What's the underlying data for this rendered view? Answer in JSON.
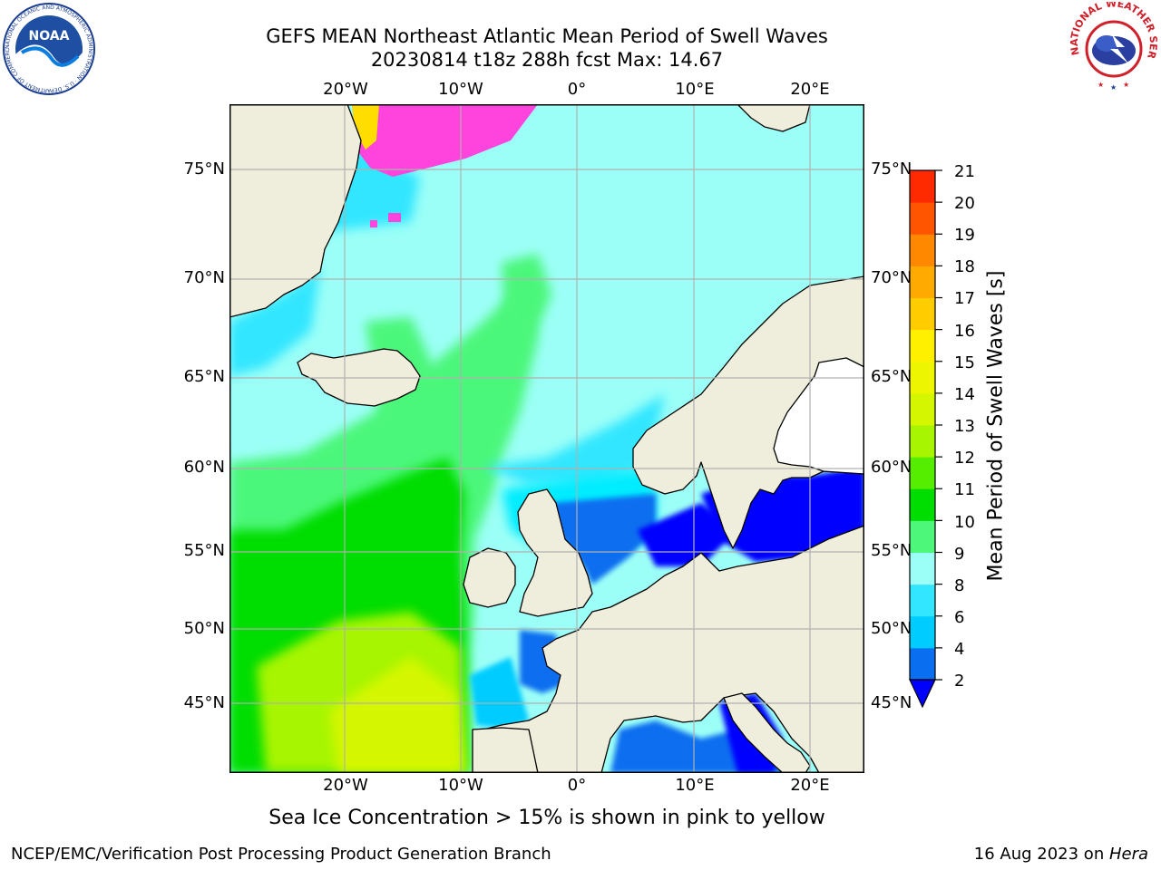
{
  "title": {
    "line1": "GEFS MEAN Northeast Atlantic Mean Period of Swell Waves",
    "line2": "20230814 t18z 288h fcst   Max: 14.67"
  },
  "map": {
    "lon_labels": [
      "20°W",
      "10°W",
      "0°",
      "10°E",
      "20°E"
    ],
    "lat_labels": [
      "75°N",
      "70°N",
      "65°N",
      "60°N",
      "55°N",
      "50°N",
      "45°N"
    ],
    "colors": {
      "land": "#efeedc",
      "unfilled_water": "#ffffff",
      "grid": "#b0b0b0",
      "coast": "#000000"
    }
  },
  "colorbar": {
    "label": "Mean Period of Swell Waves [s]",
    "ticks": [
      "21",
      "20",
      "19",
      "18",
      "17",
      "16",
      "15",
      "14",
      "13",
      "12",
      "11",
      "10",
      "9",
      "8",
      "6",
      "4",
      "2"
    ],
    "levels": [
      2,
      4,
      6,
      8,
      9,
      10,
      11,
      12,
      13,
      14,
      15,
      16,
      17,
      18,
      19,
      20,
      21
    ],
    "colors": [
      "#0a6ef0",
      "#00ccff",
      "#33e6ff",
      "#9cfff7",
      "#4cf77a",
      "#00dd00",
      "#55ee00",
      "#a7f500",
      "#d4f700",
      "#eef500",
      "#fff000",
      "#ffcc00",
      "#ffaa00",
      "#ff8800",
      "#ff5500",
      "#ff2a00"
    ],
    "under_color": "#0000ff"
  },
  "notes": {
    "ice": "Sea Ice Concentration > 15% is shown in pink to yellow"
  },
  "footer": {
    "left": "NCEP/EMC/Verification Post Processing Product Generation Branch",
    "date": "16 Aug 2023 on ",
    "host": "Hera"
  },
  "logos": {
    "noaa_text": "NOAA",
    "noaa_ring": "NATIONAL OCEANIC AND ATMOSPHERIC ADMINISTRATION · U.S. DEPARTMENT OF COMMERCE",
    "nws_ring": "NATIONAL WEATHER SERVICE"
  }
}
